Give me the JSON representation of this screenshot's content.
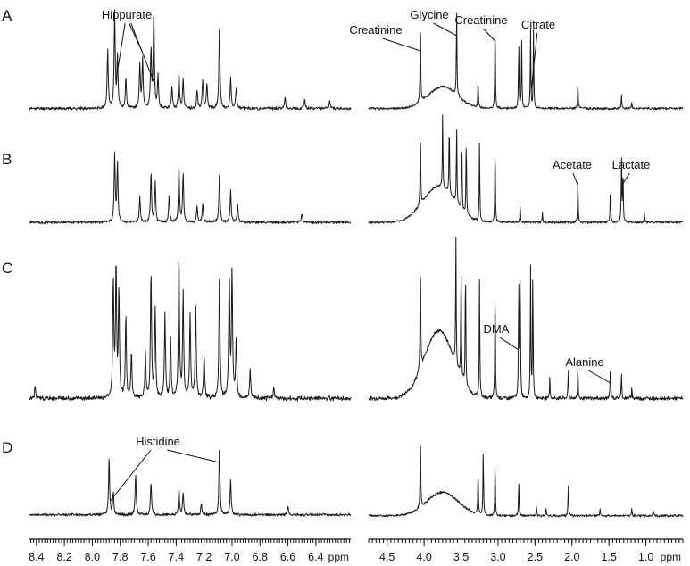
{
  "colors": {
    "trace": "#1a1a1a",
    "text": "#111111",
    "background": "#ffffff"
  },
  "chart_data": {
    "type": "line",
    "xlabel": "ppm",
    "x_reversed": true,
    "grid": false,
    "axes": [
      {
        "id": "aromatic",
        "xlim": [
          8.45,
          6.15
        ],
        "ticks": [
          "8.4",
          "8.2",
          "8.0",
          "7.8",
          "7.6",
          "7.4",
          "7.2",
          "7.0",
          "6.8",
          "6.6",
          "6.4"
        ],
        "tick_values": [
          8.4,
          8.2,
          8.0,
          7.8,
          7.6,
          7.4,
          7.2,
          7.0,
          6.8,
          6.6,
          6.4
        ]
      },
      {
        "id": "aliphatic",
        "xlim": [
          4.75,
          0.5
        ],
        "ticks": [
          "4.5",
          "4.0",
          "3.5",
          "3.0",
          "2.5",
          "2.0",
          "1.5",
          "1.0"
        ],
        "tick_values": [
          4.5,
          4.0,
          3.5,
          3.0,
          2.5,
          2.0,
          1.5,
          1.0
        ]
      }
    ],
    "panels": [
      {
        "label": "A",
        "annotations": [
          {
            "text": "Hippurate",
            "targets": [
              7.83,
              7.64,
              7.55
            ]
          },
          {
            "text": "Creatinine",
            "targets": [
              4.05
            ]
          },
          {
            "text": "Glycine",
            "targets": [
              3.56
            ]
          },
          {
            "text": "Creatinine",
            "targets": [
              3.04
            ]
          },
          {
            "text": "Citrate",
            "targets": [
              2.55
            ]
          }
        ],
        "series": [
          {
            "region": "aromatic",
            "baseline": 0.05,
            "noise": 0.012,
            "seed": 11,
            "peaks": [
              [
                7.89,
                0.6
              ],
              [
                7.84,
                0.98
              ],
              [
                7.82,
                0.52
              ],
              [
                7.76,
                0.32
              ],
              [
                7.66,
                0.45
              ],
              [
                7.64,
                0.5
              ],
              [
                7.58,
                0.6
              ],
              [
                7.56,
                0.98
              ],
              [
                7.53,
                0.34
              ],
              [
                7.43,
                0.22
              ],
              [
                7.38,
                0.36
              ],
              [
                7.35,
                0.3
              ],
              [
                7.25,
                0.18
              ],
              [
                7.21,
                0.3
              ],
              [
                7.18,
                0.26
              ],
              [
                7.09,
                0.84
              ],
              [
                7.01,
                0.32
              ],
              [
                6.97,
                0.22
              ],
              [
                6.62,
                0.12
              ],
              [
                6.48,
                0.1
              ],
              [
                6.3,
                0.08
              ]
            ]
          },
          {
            "region": "aliphatic",
            "baseline": 0.05,
            "noise": 0.01,
            "seed": 12,
            "hump": [
              3.75,
              0.22,
              0.28
            ],
            "peaks": [
              [
                4.05,
                0.95
              ],
              [
                3.56,
                0.92
              ],
              [
                3.27,
                0.3
              ],
              [
                3.04,
                0.95
              ],
              [
                2.72,
                0.7
              ],
              [
                2.68,
                0.68
              ],
              [
                2.56,
                0.82
              ],
              [
                2.52,
                0.8
              ],
              [
                1.92,
                0.28
              ],
              [
                1.33,
                0.14
              ],
              [
                1.19,
                0.06
              ]
            ]
          }
        ]
      },
      {
        "label": "B",
        "annotations": [
          {
            "text": "Acetate",
            "targets": [
              1.92
            ]
          },
          {
            "text": "Lactate",
            "targets": [
              1.33
            ]
          }
        ],
        "series": [
          {
            "region": "aromatic",
            "baseline": 0.05,
            "noise": 0.012,
            "seed": 21,
            "peaks": [
              [
                7.84,
                0.75
              ],
              [
                7.82,
                0.65
              ],
              [
                7.66,
                0.28
              ],
              [
                7.58,
                0.55
              ],
              [
                7.55,
                0.45
              ],
              [
                7.45,
                0.3
              ],
              [
                7.38,
                0.62
              ],
              [
                7.35,
                0.55
              ],
              [
                7.25,
                0.18
              ],
              [
                7.21,
                0.2
              ],
              [
                7.09,
                0.55
              ],
              [
                7.01,
                0.35
              ],
              [
                6.96,
                0.2
              ],
              [
                6.5,
                0.1
              ]
            ]
          },
          {
            "region": "aliphatic",
            "baseline": 0.05,
            "noise": 0.01,
            "seed": 22,
            "hump": [
              3.8,
              0.4,
              0.3
            ],
            "peaks": [
              [
                4.05,
                0.95
              ],
              [
                3.75,
                0.82
              ],
              [
                3.66,
                0.85
              ],
              [
                3.56,
                0.92
              ],
              [
                3.49,
                0.85
              ],
              [
                3.43,
                0.9
              ],
              [
                3.25,
                0.9
              ],
              [
                3.04,
                0.92
              ],
              [
                2.7,
                0.2
              ],
              [
                2.4,
                0.1
              ],
              [
                1.92,
                0.5
              ],
              [
                1.48,
                0.42
              ],
              [
                1.33,
                0.72
              ],
              [
                1.31,
                0.62
              ],
              [
                1.02,
                0.1
              ]
            ]
          }
        ]
      },
      {
        "label": "C",
        "annotations": [
          {
            "text": "DMA",
            "targets": [
              2.72
            ]
          },
          {
            "text": "Alanine",
            "targets": [
              1.48
            ]
          }
        ],
        "series": [
          {
            "region": "aromatic",
            "baseline": 0.04,
            "noise": 0.012,
            "seed": 31,
            "peaks": [
              [
                8.41,
                0.08
              ],
              [
                7.85,
                0.8
              ],
              [
                7.83,
                0.88
              ],
              [
                7.81,
                0.7
              ],
              [
                7.76,
                0.55
              ],
              [
                7.72,
                0.3
              ],
              [
                7.62,
                0.3
              ],
              [
                7.58,
                0.85
              ],
              [
                7.55,
                0.6
              ],
              [
                7.48,
                0.55
              ],
              [
                7.44,
                0.4
              ],
              [
                7.38,
                0.95
              ],
              [
                7.35,
                0.7
              ],
              [
                7.3,
                0.55
              ],
              [
                7.26,
                0.62
              ],
              [
                7.2,
                0.3
              ],
              [
                7.09,
                0.82
              ],
              [
                7.02,
                0.82
              ],
              [
                7.0,
                0.85
              ],
              [
                6.97,
                0.4
              ],
              [
                6.87,
                0.2
              ],
              [
                6.7,
                0.08
              ]
            ]
          },
          {
            "region": "aliphatic",
            "baseline": 0.04,
            "noise": 0.01,
            "seed": 32,
            "hump": [
              3.8,
              0.45,
              0.28
            ],
            "peaks": [
              [
                4.05,
                0.82
              ],
              [
                3.57,
                0.85
              ],
              [
                3.5,
                0.8
              ],
              [
                3.44,
                0.85
              ],
              [
                3.25,
                0.82
              ],
              [
                3.04,
                0.8
              ],
              [
                2.72,
                0.82
              ],
              [
                2.7,
                0.86
              ],
              [
                2.56,
                0.9
              ],
              [
                2.53,
                0.88
              ],
              [
                2.3,
                0.15
              ],
              [
                2.05,
                0.2
              ],
              [
                1.92,
                0.22
              ],
              [
                1.48,
                0.24
              ],
              [
                1.33,
                0.18
              ],
              [
                1.19,
                0.08
              ]
            ]
          }
        ]
      },
      {
        "label": "D",
        "annotations": [
          {
            "text": "Histidine",
            "targets": [
              7.87,
              7.09
            ]
          }
        ],
        "series": [
          {
            "region": "aromatic",
            "baseline": 0.06,
            "noise": 0.012,
            "seed": 41,
            "peaks": [
              [
                7.88,
                0.6
              ],
              [
                7.85,
                0.25
              ],
              [
                7.69,
                0.44
              ],
              [
                7.58,
                0.35
              ],
              [
                7.38,
                0.28
              ],
              [
                7.35,
                0.24
              ],
              [
                7.22,
                0.12
              ],
              [
                7.09,
                0.72
              ],
              [
                7.01,
                0.38
              ],
              [
                6.6,
                0.1
              ]
            ]
          },
          {
            "region": "aliphatic",
            "baseline": 0.05,
            "noise": 0.01,
            "seed": 42,
            "hump": [
              3.75,
              0.25,
              0.3
            ],
            "peaks": [
              [
                4.05,
                0.88
              ],
              [
                3.27,
                0.5
              ],
              [
                3.2,
                0.72
              ],
              [
                3.04,
                0.6
              ],
              [
                2.72,
                0.38
              ],
              [
                2.48,
                0.12
              ],
              [
                2.35,
                0.08
              ],
              [
                2.05,
                0.36
              ],
              [
                1.62,
                0.08
              ],
              [
                1.19,
                0.08
              ],
              [
                0.9,
                0.06
              ]
            ]
          }
        ]
      }
    ]
  }
}
